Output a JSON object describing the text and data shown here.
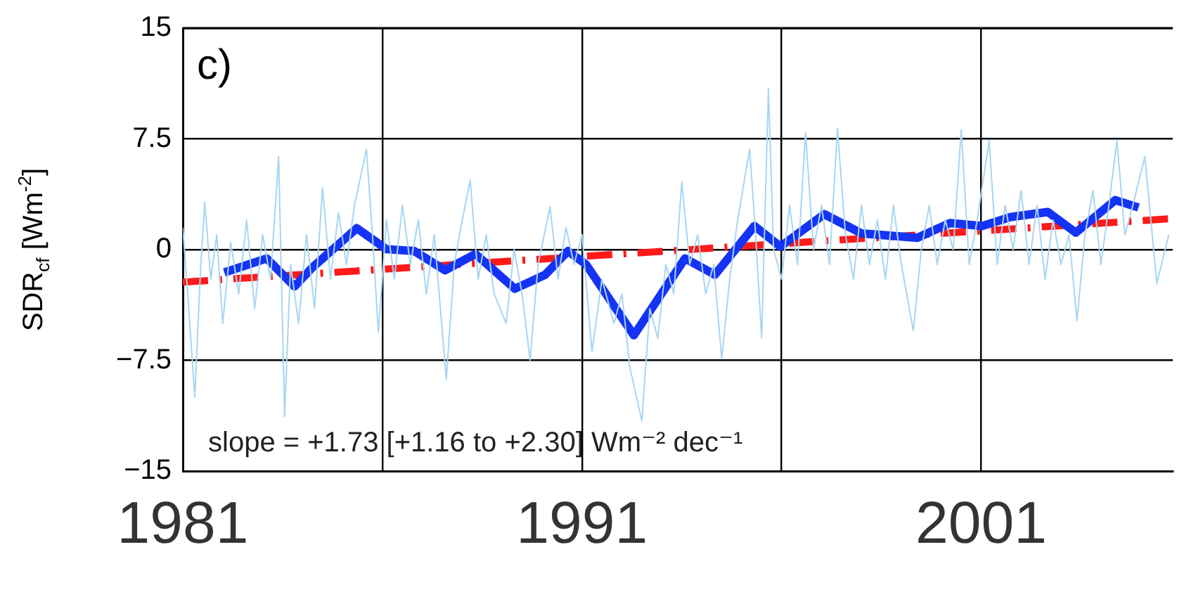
{
  "chart_data": {
    "type": "line",
    "title": "c)",
    "ylabel": "SDR$_{cf}$ [Wm$^{-2}$]",
    "annotations": [
      "slope = +1.73 [+1.16 to +2.30] Wm⁻² dec⁻¹"
    ],
    "xlim": [
      1981,
      2005.8
    ],
    "xticks": [
      1981,
      {
        "value": 1986,
        "label": null
      },
      1991,
      {
        "value": 1996,
        "label": null
      },
      2001
    ],
    "ylim": [
      -15,
      15
    ],
    "yticks": [
      {
        "value": -15,
        "label": "−15"
      },
      {
        "value": -7.5,
        "label": "−7.5"
      },
      0,
      7.5,
      15
    ],
    "grid": true,
    "legend": false,
    "marker": "none",
    "series": [
      {
        "color": "#a9d5f2",
        "x": [
          1981.0,
          1981.15,
          1981.3,
          1981.45,
          1981.55,
          1981.7,
          1981.85,
          1982.0,
          1982.2,
          1982.4,
          1982.6,
          1982.8,
          1983.0,
          1983.2,
          1983.4,
          1983.55,
          1983.7,
          1983.9,
          1984.1,
          1984.3,
          1984.5,
          1984.7,
          1984.9,
          1985.1,
          1985.3,
          1985.6,
          1985.75,
          1985.9,
          1986.1,
          1986.3,
          1986.5,
          1986.7,
          1986.9,
          1987.1,
          1987.3,
          1987.6,
          1987.8,
          1988.0,
          1988.2,
          1988.4,
          1988.6,
          1988.8,
          1989.1,
          1989.3,
          1989.5,
          1989.7,
          1989.9,
          1990.2,
          1990.4,
          1990.6,
          1990.8,
          1991.0,
          1991.25,
          1991.5,
          1991.8,
          1992.0,
          1992.2,
          1992.5,
          1992.7,
          1992.9,
          1993.1,
          1993.3,
          1993.5,
          1993.7,
          1993.9,
          1994.1,
          1994.3,
          1994.5,
          1994.7,
          1994.9,
          1995.2,
          1995.35,
          1995.5,
          1995.67,
          1995.8,
          1996.0,
          1996.2,
          1996.4,
          1996.6,
          1996.8,
          1997.0,
          1997.2,
          1997.4,
          1997.6,
          1997.8,
          1998.0,
          1998.2,
          1998.4,
          1998.6,
          1998.8,
          1999.0,
          1999.3,
          1999.5,
          1999.7,
          1999.9,
          2000.1,
          2000.3,
          2000.5,
          2000.7,
          2000.9,
          2001.2,
          2001.4,
          2001.6,
          2001.8,
          2002.0,
          2002.2,
          2002.4,
          2002.6,
          2002.8,
          2003.0,
          2003.2,
          2003.4,
          2003.6,
          2003.8,
          2004.0,
          2004.2,
          2004.4,
          2004.6,
          2004.8,
          2005.1,
          2005.4,
          2005.7
        ],
        "values": [
          1.5,
          -4,
          -10,
          -1,
          3.2,
          -2,
          1,
          -5,
          0.5,
          -3,
          2,
          -4,
          1,
          -2,
          6.3,
          -11.3,
          -1,
          -5,
          1,
          -4,
          4.2,
          -2,
          2.5,
          -1,
          3,
          6.8,
          1,
          -5.6,
          2,
          -2,
          3,
          -1,
          2,
          -3,
          1,
          -8.8,
          -1,
          2,
          4.7,
          -2,
          1,
          -3,
          -5,
          0,
          -3,
          -7.5,
          -1,
          2.9,
          -2,
          1.5,
          -1,
          1,
          -6.9,
          -2,
          -5,
          -3,
          -8,
          -11.6,
          -4,
          -6,
          -1,
          -3,
          4.6,
          -1,
          1,
          -3,
          -1,
          -7.4,
          -2,
          2,
          6.8,
          1,
          -6,
          10.9,
          0,
          -2,
          3,
          -1,
          7.9,
          0,
          3,
          -1,
          8.2,
          1,
          -2,
          3,
          -1,
          2,
          -2,
          3,
          -1,
          -5.5,
          0,
          3,
          -1,
          2,
          0,
          8.1,
          -1,
          2,
          7.4,
          -1,
          3,
          0,
          4,
          -1,
          3,
          -2,
          2,
          -1,
          1,
          -4.8,
          1,
          4,
          -1,
          3,
          7.4,
          1,
          3,
          6.3,
          -2.3,
          1
        ]
      },
      {
        "color": "#1433f5",
        "x": [
          1982.04,
          1983.1,
          1983.8,
          1984.25,
          1985.36,
          1986.1,
          1986.8,
          1987.57,
          1988.33,
          1989.32,
          1990.08,
          1990.65,
          1991.1,
          1992.3,
          1993.58,
          1994.33,
          1995.32,
          1995.97,
          1997.07,
          1998.0,
          1999.4,
          2000.22,
          2001.03,
          2001.73,
          2002.67,
          2003.37,
          2004.36,
          2004.94
        ],
        "values": [
          -1.55,
          -0.6,
          -2.5,
          -1.2,
          1.45,
          0.03,
          -0.1,
          -1.4,
          -0.3,
          -2.65,
          -1.7,
          -0.1,
          -1.0,
          -5.8,
          -0.6,
          -1.7,
          1.6,
          0.2,
          2.4,
          1.1,
          0.8,
          1.8,
          1.6,
          2.2,
          2.55,
          1.15,
          3.35,
          2.85
        ]
      },
      {
        "type": "line",
        "color": "#ff1a1a",
        "line_style": "dashed",
        "x": [
          1981,
          2005.8
        ],
        "values": [
          -2.2,
          2.1
        ]
      }
    ]
  }
}
